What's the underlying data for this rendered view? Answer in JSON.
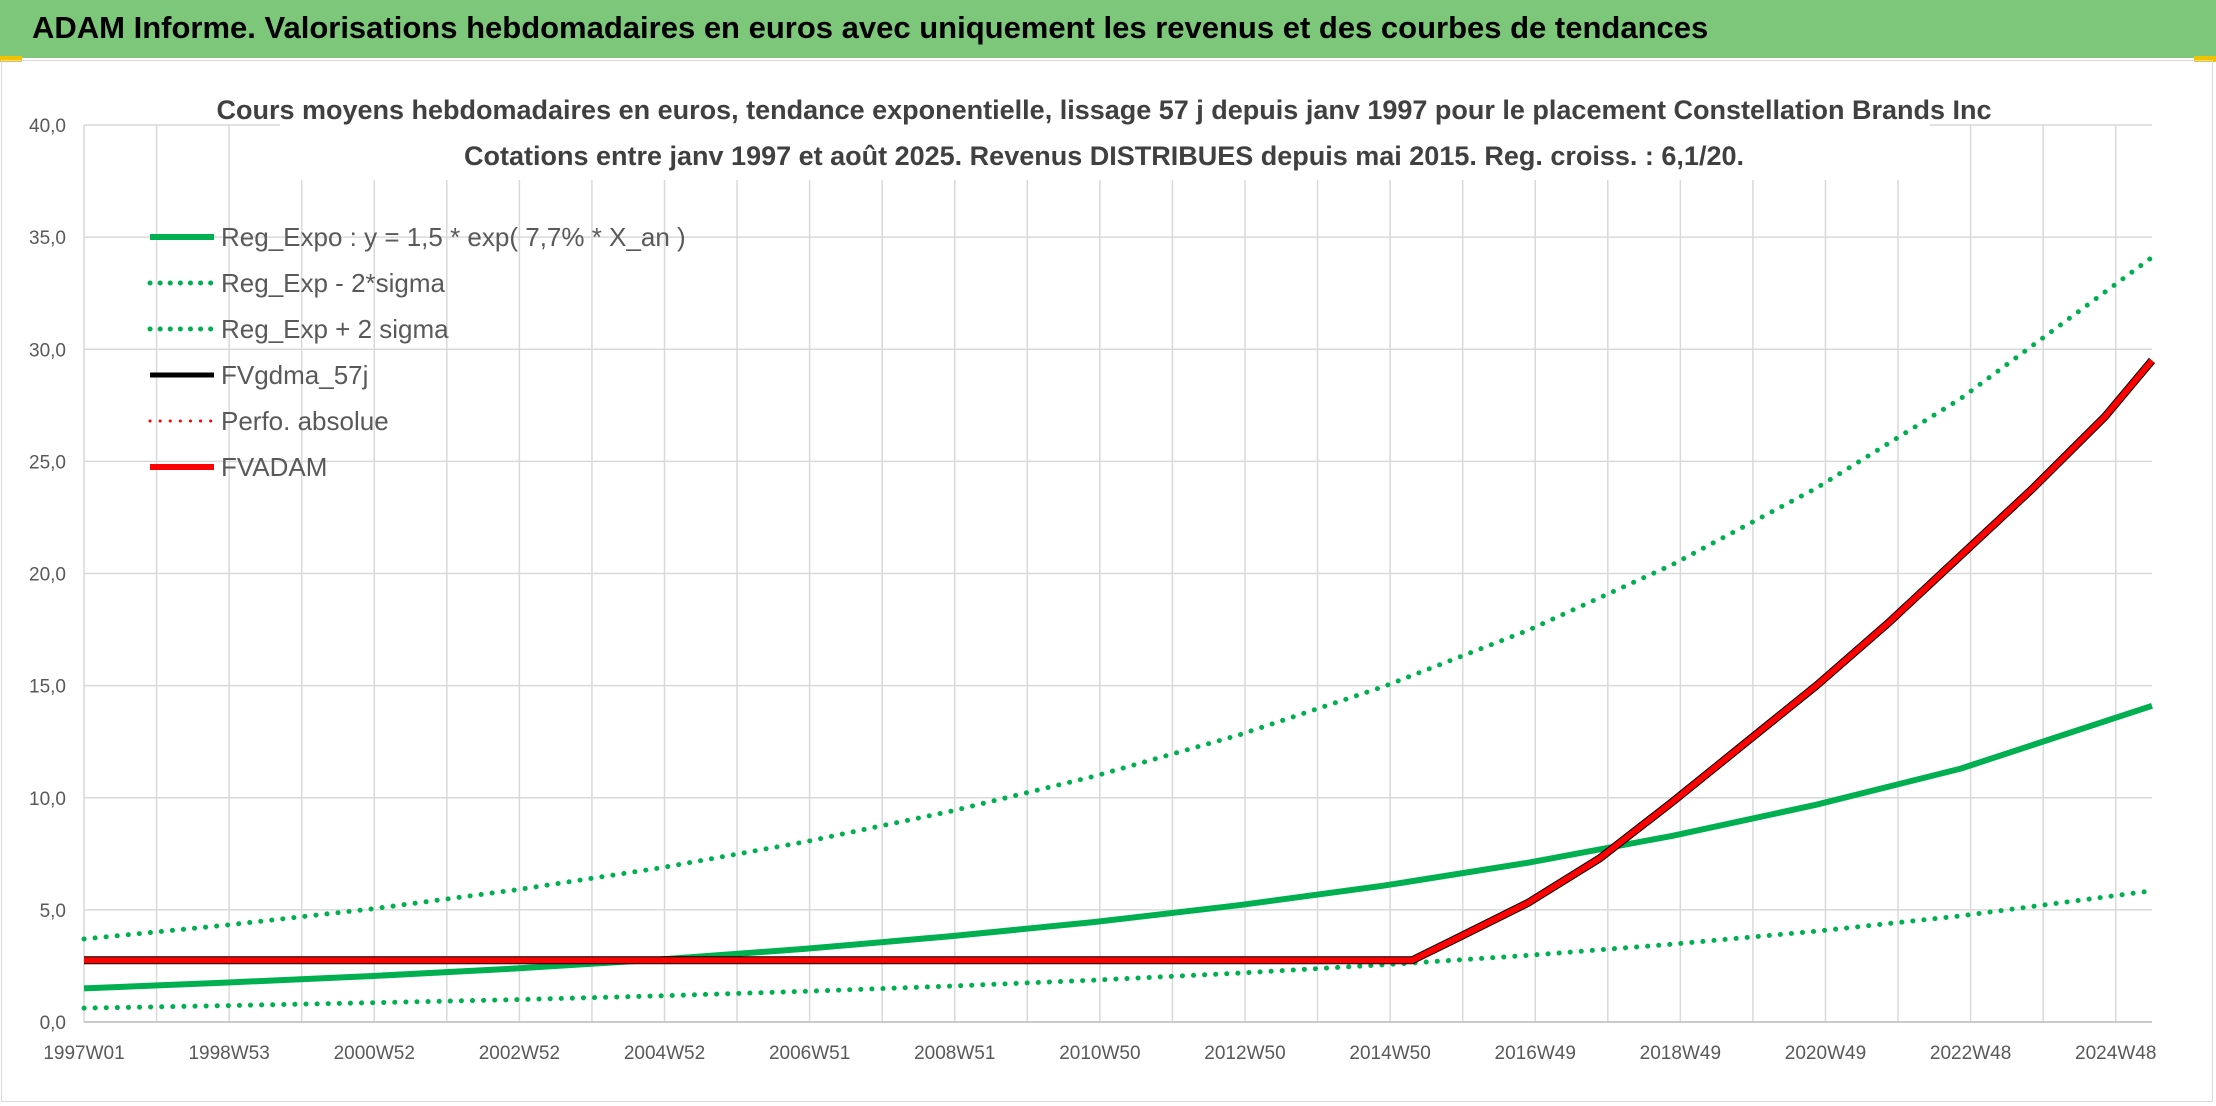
{
  "banner": {
    "title": "ADAM Informe. Valorisations hebdomadaires en euros avec uniquement les revenus et des courbes de tendances"
  },
  "colors": {
    "banner_bg": "#7dc77a",
    "green": "#00b050",
    "red": "#ff0000",
    "black": "#000000",
    "grid": "#d9d9d9"
  },
  "chart_data": {
    "type": "line",
    "title": "Cours moyens hebdomadaires en euros, tendance exponentielle, lissage 57 j depuis janv 1997 pour le placement Constellation Brands Inc",
    "subtitle": "Cotations entre janv 1997 et août 2025. Revenus DISTRIBUES depuis mai 2015. Reg. croiss. : 6,1/20.",
    "xlabel": "",
    "ylabel": "",
    "ylim": [
      0,
      40
    ],
    "y_ticks": [
      "0,0",
      "5,0",
      "10,0",
      "15,0",
      "20,0",
      "25,0",
      "30,0",
      "35,0",
      "40,0"
    ],
    "x_tick_labels": [
      "1997W01",
      "1998W53",
      "2000W52",
      "2002W52",
      "2004W52",
      "2006W51",
      "2008W51",
      "2010W50",
      "2012W50",
      "2014W50",
      "2016W49",
      "2018W49",
      "2020W49",
      "2022W48",
      "2024W48"
    ],
    "x_range_years": [
      1997.0,
      2025.65
    ],
    "grid": true,
    "legend_position": "top-left",
    "legend": [
      {
        "label": "Reg_Expo : y = 1,5 * exp( 7,7% *  X_an )",
        "color": "#00b050",
        "style": "solid",
        "width": 6
      },
      {
        "label": "Reg_Exp - 2*sigma",
        "color": "#00b050",
        "style": "dotted",
        "width": 5
      },
      {
        "label": "Reg_Exp + 2 sigma",
        "color": "#00b050",
        "style": "dotted",
        "width": 5
      },
      {
        "label": "FVgdma_57j",
        "color": "#000000",
        "style": "solid",
        "width": 5
      },
      {
        "label": "Perfo. absolue",
        "color": "#ff0000",
        "style": "dotted",
        "width": 3
      },
      {
        "label": "FVADAM",
        "color": "#ff0000",
        "style": "solid",
        "width": 6
      }
    ],
    "series": [
      {
        "name": "Reg_Expo : y = 1,5 * exp( 7,7% *  X_an )",
        "x": [
          1997,
          1999,
          2001,
          2003,
          2005,
          2007,
          2009,
          2011,
          2013,
          2015,
          2017,
          2019,
          2021,
          2023,
          2025.65
        ],
        "y": [
          1.5,
          1.76,
          2.05,
          2.39,
          2.79,
          3.27,
          3.82,
          4.46,
          5.21,
          6.08,
          7.1,
          8.3,
          9.69,
          11.3,
          14.1
        ]
      },
      {
        "name": "Reg_Exp - 2*sigma",
        "x": [
          1997,
          1999,
          2001,
          2003,
          2005,
          2007,
          2009,
          2011,
          2013,
          2015,
          2017,
          2019,
          2021,
          2023,
          2025.65
        ],
        "y": [
          0.62,
          0.73,
          0.86,
          1.0,
          1.17,
          1.37,
          1.6,
          1.87,
          2.18,
          2.55,
          2.97,
          3.47,
          4.05,
          4.73,
          5.85
        ]
      },
      {
        "name": "Reg_Exp + 2 sigma",
        "x": [
          1997,
          1999,
          2001,
          2003,
          2005,
          2007,
          2009,
          2011,
          2013,
          2015,
          2017,
          2019,
          2021,
          2023,
          2025.65
        ],
        "y": [
          3.7,
          4.33,
          5.05,
          5.9,
          6.88,
          8.04,
          9.39,
          10.96,
          12.8,
          14.95,
          17.46,
          20.39,
          23.81,
          27.8,
          34.1
        ]
      },
      {
        "name": "FVgdma_57j",
        "x": [
          1997,
          2015.4,
          2016,
          2017,
          2018,
          2019,
          2020,
          2021,
          2022,
          2023,
          2024,
          2025,
          2025.65
        ],
        "y": [
          2.75,
          2.75,
          3.7,
          5.3,
          7.3,
          9.8,
          12.4,
          15.0,
          17.8,
          20.8,
          23.8,
          27.0,
          29.5
        ]
      },
      {
        "name": "FVADAM",
        "x": [
          1997,
          2015.4,
          2016,
          2017,
          2018,
          2019,
          2020,
          2021,
          2022,
          2023,
          2024,
          2025,
          2025.65
        ],
        "y": [
          2.75,
          2.75,
          3.7,
          5.3,
          7.3,
          9.8,
          12.4,
          15.0,
          17.8,
          20.8,
          23.8,
          27.0,
          29.5
        ]
      }
    ]
  }
}
